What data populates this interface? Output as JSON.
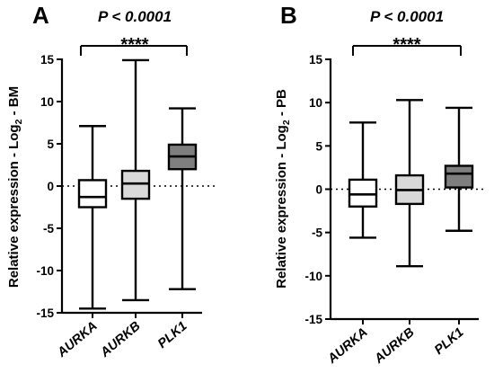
{
  "chart_data": [
    {
      "type": "boxplot",
      "panel_label": "A",
      "p_value": "P < 0.0001",
      "significance": "****",
      "ylabel_main": "Relative expression - Log",
      "ylabel_sub": "2",
      "ylabel_suffix": " - BM",
      "ylim": [
        -15,
        15
      ],
      "yticks": [
        "15",
        "10",
        "5",
        "0",
        "-5",
        "-10",
        "-15"
      ],
      "reference_line": 0,
      "categories": [
        "AURKA",
        "AURKB",
        "PLK1"
      ],
      "box_colors": [
        "#ffffff",
        "#d9d9d9",
        "#7f7f7f"
      ],
      "boxes": [
        {
          "min": -14.5,
          "q1": -2.5,
          "median": -1.3,
          "q3": 0.7,
          "max": 7.1
        },
        {
          "min": -13.5,
          "q1": -1.5,
          "median": 0.3,
          "q3": 1.8,
          "max": 14.9
        },
        {
          "min": -12.2,
          "q1": 2.0,
          "median": 3.5,
          "q3": 4.9,
          "max": 9.2
        }
      ]
    },
    {
      "type": "boxplot",
      "panel_label": "B",
      "p_value": "P < 0.0001",
      "significance": "****",
      "ylabel_main": "Relative expression - Log",
      "ylabel_sub": "2",
      "ylabel_suffix": " - PB",
      "ylim": [
        -15,
        15
      ],
      "yticks": [
        "15",
        "10",
        "5",
        "0",
        "-5",
        "-10",
        "-15"
      ],
      "reference_line": 0,
      "categories": [
        "AURKA",
        "AURKB",
        "PLK1"
      ],
      "box_colors": [
        "#ffffff",
        "#d9d9d9",
        "#7f7f7f"
      ],
      "boxes": [
        {
          "min": -5.6,
          "q1": -2.0,
          "median": -0.6,
          "q3": 1.1,
          "max": 7.7
        },
        {
          "min": -8.9,
          "q1": -1.7,
          "median": -0.1,
          "q3": 1.6,
          "max": 10.3
        },
        {
          "min": -4.8,
          "q1": 0.2,
          "median": 1.8,
          "q3": 2.7,
          "max": 9.4
        }
      ]
    }
  ]
}
